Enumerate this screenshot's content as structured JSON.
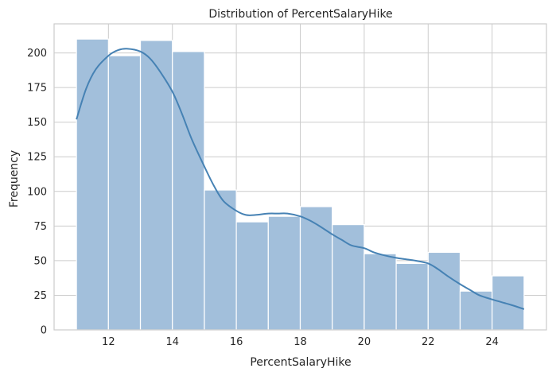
{
  "chart_data": {
    "type": "bar",
    "title": "Distribution of PercentSalaryHike",
    "xlabel": "PercentSalaryHike",
    "ylabel": "Frequency",
    "xlim": [
      10.3,
      25.7
    ],
    "ylim": [
      0,
      221
    ],
    "xticks": [
      12,
      14,
      16,
      18,
      20,
      22,
      24
    ],
    "yticks": [
      0,
      25,
      50,
      75,
      100,
      125,
      150,
      175,
      200
    ],
    "grid": true,
    "bins": [
      {
        "x0": 11,
        "x1": 12,
        "count": 210
      },
      {
        "x0": 12,
        "x1": 13,
        "count": 198
      },
      {
        "x0": 13,
        "x1": 14,
        "count": 209
      },
      {
        "x0": 14,
        "x1": 15,
        "count": 201
      },
      {
        "x0": 15,
        "x1": 16,
        "count": 101
      },
      {
        "x0": 16,
        "x1": 17,
        "count": 78
      },
      {
        "x0": 17,
        "x1": 18,
        "count": 82
      },
      {
        "x0": 18,
        "x1": 19,
        "count": 89
      },
      {
        "x0": 19,
        "x1": 20,
        "count": 76
      },
      {
        "x0": 20,
        "x1": 21,
        "count": 55
      },
      {
        "x0": 21,
        "x1": 22,
        "count": 48
      },
      {
        "x0": 22,
        "x1": 23,
        "count": 56
      },
      {
        "x0": 23,
        "x1": 24,
        "count": 28
      },
      {
        "x0": 24,
        "x1": 25,
        "count": 39
      }
    ],
    "kde": {
      "x": [
        11,
        11.3,
        11.6,
        12,
        12.3,
        12.6,
        13,
        13.3,
        13.6,
        14,
        14.3,
        14.6,
        15,
        15.3,
        15.6,
        16,
        16.3,
        16.6,
        17,
        17.3,
        17.6,
        18,
        18.3,
        18.6,
        19,
        19.3,
        19.6,
        20,
        20.3,
        20.6,
        21,
        21.3,
        21.6,
        22,
        22.3,
        22.6,
        23,
        23.3,
        23.6,
        24,
        24.3,
        24.6,
        25
      ],
      "y": [
        152,
        174,
        188,
        198,
        202,
        203,
        201,
        196,
        187,
        172,
        156,
        138,
        118,
        104,
        93,
        86,
        83,
        83,
        84,
        84,
        84,
        82,
        79,
        75,
        69,
        65,
        61,
        59,
        56,
        54,
        52,
        51,
        50,
        48,
        44,
        39,
        33,
        29,
        25,
        22,
        20,
        18,
        15
      ]
    },
    "colors": {
      "bar_fill": "#a2bfdb",
      "bar_stroke": "#ffffff",
      "kde_line": "#4682b4",
      "grid": "#cccccc",
      "axes_frame": "#cccccc",
      "text": "#262626"
    }
  }
}
